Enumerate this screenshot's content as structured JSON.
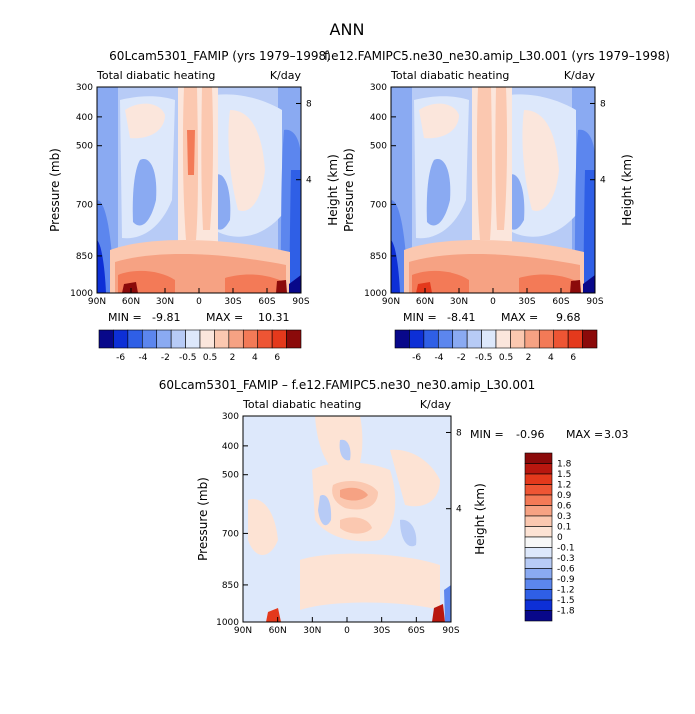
{
  "figure_title": "ANN",
  "chart_data": [
    {
      "type": "heatmap",
      "title": "60Lcam5301_FAMIP (yrs 1979–1998)",
      "field_label": "Total diabatic heating",
      "units": "K/day",
      "xlabel": "",
      "ylabel": "Pressure (mb)",
      "y2label": "Height (km)",
      "x_ticks": [
        "90N",
        "60N",
        "30N",
        "0",
        "30S",
        "60S",
        "90S"
      ],
      "y_ticks": [
        "300",
        "400",
        "500",
        "700",
        "850",
        "1000"
      ],
      "y2_ticks": [
        "8",
        "4"
      ],
      "stats": {
        "min_label": "MIN =",
        "min": "-9.81",
        "max_label": "MAX =",
        "max": "10.31"
      },
      "colorbar_labels": [
        "-6",
        "-4",
        "-2",
        "-0.5",
        "0.5",
        "2",
        "4",
        "6"
      ]
    },
    {
      "type": "heatmap",
      "title": "f.e12.FAMIPC5.ne30_ne30.amip_L30.001 (yrs 1979–1998)",
      "field_label": "Total diabatic heating",
      "units": "K/day",
      "xlabel": "",
      "ylabel": "Pressure (mb)",
      "y2label": "Height (km)",
      "x_ticks": [
        "90N",
        "60N",
        "30N",
        "0",
        "30S",
        "60S",
        "90S"
      ],
      "y_ticks": [
        "300",
        "400",
        "500",
        "700",
        "850",
        "1000"
      ],
      "y2_ticks": [
        "8",
        "4"
      ],
      "stats": {
        "min_label": "MIN =",
        "min": "-8.41",
        "max_label": "MAX =",
        "max": "9.68"
      },
      "colorbar_labels": [
        "-6",
        "-4",
        "-2",
        "-0.5",
        "0.5",
        "2",
        "4",
        "6"
      ]
    },
    {
      "type": "heatmap",
      "title": "60Lcam5301_FAMIP – f.e12.FAMIPC5.ne30_ne30.amip_L30.001",
      "field_label": "Total diabatic heating",
      "units": "K/day",
      "xlabel": "",
      "ylabel": "Pressure (mb)",
      "y2label": "Height (km)",
      "x_ticks": [
        "90N",
        "60N",
        "30N",
        "0",
        "30S",
        "60S",
        "90S"
      ],
      "y_ticks": [
        "300",
        "400",
        "500",
        "700",
        "850",
        "1000"
      ],
      "y2_ticks": [
        "8",
        "4"
      ],
      "stats": {
        "min_label": "MIN =",
        "min": "-0.96",
        "max_label": "MAX =",
        "max": "3.03"
      },
      "colorbar_labels": [
        "1.8",
        "1.5",
        "1.2",
        "0.9",
        "0.6",
        "0.3",
        "0.1",
        "0",
        "-0.1",
        "-0.3",
        "-0.6",
        "-0.9",
        "-1.2",
        "-1.5",
        "-1.8"
      ]
    }
  ],
  "colors": {
    "main_scale": [
      "#08088a",
      "#0d2fd6",
      "#2f5fe6",
      "#5c86ee",
      "#8aaaf2",
      "#b7cbf6",
      "#dde8fb",
      "#fbe6dc",
      "#fbc8b0",
      "#f6a283",
      "#f37a57",
      "#ee5534",
      "#e4391c",
      "#8b0a0a"
    ],
    "diff_scale": [
      "#8b0a0a",
      "#b8170f",
      "#e4391c",
      "#ee5534",
      "#f37a57",
      "#f6a283",
      "#fbc8b0",
      "#fde3d4",
      "#f7f7f7",
      "#dde8fb",
      "#b7cbf6",
      "#8aaaf2",
      "#5c86ee",
      "#2f5fe6",
      "#0d2fd6",
      "#08088a"
    ]
  }
}
